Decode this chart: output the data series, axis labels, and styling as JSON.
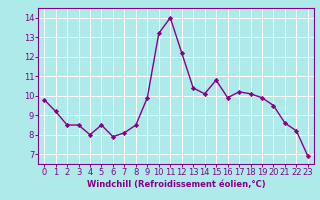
{
  "x": [
    0,
    1,
    2,
    3,
    4,
    5,
    6,
    7,
    8,
    9,
    10,
    11,
    12,
    13,
    14,
    15,
    16,
    17,
    18,
    19,
    20,
    21,
    22,
    23
  ],
  "y": [
    9.8,
    9.2,
    8.5,
    8.5,
    8.0,
    8.5,
    7.9,
    8.1,
    8.5,
    9.9,
    13.2,
    14.0,
    12.2,
    10.4,
    10.1,
    10.8,
    9.9,
    10.2,
    10.1,
    9.9,
    9.5,
    8.6,
    8.2,
    6.9
  ],
  "line_color": "#880088",
  "marker": "D",
  "marker_size": 2.2,
  "line_width": 1.0,
  "background_color": "#aeeaea",
  "grid_color": "#ffffff",
  "xlabel": "Windchill (Refroidissement éolien,°C)",
  "xlabel_fontsize": 6.0,
  "tick_fontsize": 6.0,
  "xlim": [
    -0.5,
    23.5
  ],
  "ylim": [
    6.5,
    14.5
  ],
  "yticks": [
    7,
    8,
    9,
    10,
    11,
    12,
    13,
    14
  ],
  "xticks": [
    0,
    1,
    2,
    3,
    4,
    5,
    6,
    7,
    8,
    9,
    10,
    11,
    12,
    13,
    14,
    15,
    16,
    17,
    18,
    19,
    20,
    21,
    22,
    23
  ]
}
